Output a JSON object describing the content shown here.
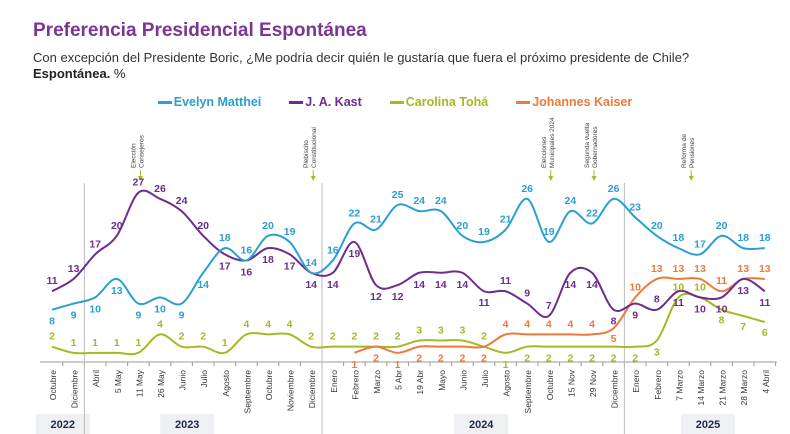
{
  "title": "Preferencia Presidencial Espontánea",
  "subtitle": "Con excepción del Presidente Boric, ¿Me podría decir quién le gustaría que fuera el próximo presidente de Chile?",
  "subtitle2_bold": "Espontánea.",
  "subtitle2_rest": " %",
  "chart_data": {
    "type": "line",
    "categories": [
      "Octubre",
      "Diciembre",
      "Abril",
      "5 May",
      "11 May",
      "26 May",
      "Junio",
      "Julio",
      "Agosto",
      "Septiembre",
      "Octubre",
      "Noviembre",
      "Diciembre",
      "Enero",
      "Febrero",
      "Marzo",
      "5 Abr",
      "19 Abr",
      "Mayo",
      "Junio",
      "Julio",
      "Agosto",
      "Septiembre",
      "Octubre",
      "15 Nov",
      "29 Nov",
      "Diciembre",
      "Enero",
      "Febrero",
      "7 Marzo",
      "14 Marzo",
      "21 Marzo",
      "28 Marzo",
      "4 Abril"
    ],
    "years": [
      {
        "label": "2022",
        "from": 0,
        "to": 1
      },
      {
        "label": "2023",
        "from": 2,
        "to": 12
      },
      {
        "label": "2024",
        "from": 13,
        "to": 26
      },
      {
        "label": "2025",
        "from": 27,
        "to": 33
      }
    ],
    "series": [
      {
        "name": "Evelyn Matthei",
        "color": "#2a9fd0",
        "values": [
          8,
          9,
          10,
          13,
          9,
          10,
          9,
          14,
          18,
          16,
          20,
          19,
          14,
          16,
          22,
          21,
          25,
          24,
          24,
          20,
          19,
          21,
          26,
          19,
          24,
          22,
          26,
          23,
          20,
          18,
          17,
          20,
          18,
          18
        ]
      },
      {
        "name": "J. A. Kast",
        "color": "#6e2c8e",
        "values": [
          11,
          13,
          17,
          20,
          27,
          26,
          24,
          20,
          17,
          16,
          18,
          17,
          14,
          14,
          19,
          12,
          12,
          14,
          14,
          14,
          11,
          11,
          9,
          7,
          14,
          14,
          8,
          9,
          8,
          11,
          10,
          10,
          13,
          11
        ]
      },
      {
        "name": "Carolina Tohá",
        "color": "#a8b820",
        "values": [
          2,
          1,
          1,
          1,
          1,
          4,
          2,
          2,
          1,
          4,
          4,
          4,
          2,
          2,
          2,
          2,
          2,
          3,
          3,
          3,
          2,
          1,
          2,
          2,
          2,
          2,
          2,
          2,
          3,
          10,
          10,
          8,
          7,
          6
        ]
      },
      {
        "name": "Johannes Kaiser",
        "color": "#ec7a3a",
        "values": [
          null,
          null,
          null,
          null,
          null,
          null,
          null,
          null,
          null,
          null,
          null,
          null,
          null,
          null,
          1,
          2,
          1,
          2,
          2,
          2,
          2,
          4,
          4,
          4,
          4,
          4,
          5,
          10,
          13,
          13,
          13,
          11,
          13,
          13
        ]
      }
    ],
    "annotations": [
      {
        "text": [
          "Elección",
          "Consejeros"
        ],
        "index": 4
      },
      {
        "text": [
          "Plebiscito",
          "Constitucional"
        ],
        "index": 12
      },
      {
        "text": [
          "Elecciones",
          "Municipales 2024"
        ],
        "index": 23
      },
      {
        "text": [
          "Segunda vuelta",
          "Gobernadores"
        ],
        "index": 25
      },
      {
        "text": [
          "Reforma de",
          "Pensiones"
        ],
        "index": 29.5
      }
    ],
    "ylabel": "",
    "xlabel": "",
    "grid": false,
    "legend": "top"
  }
}
